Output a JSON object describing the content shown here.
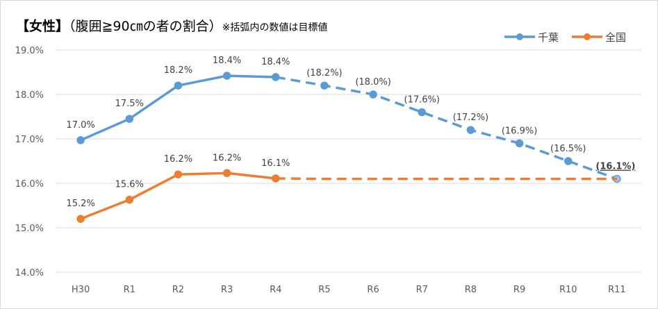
{
  "title": {
    "main": "【女性】",
    "sub": "（腹囲≧90㎝の者の割合）",
    "note": "※括弧内の数値は目標値"
  },
  "chart_data": {
    "type": "line",
    "categories": [
      "H30",
      "R1",
      "R2",
      "R3",
      "R4",
      "R5",
      "R6",
      "R7",
      "R8",
      "R9",
      "R10",
      "R11"
    ],
    "ylim": [
      14.0,
      19.0
    ],
    "yticks": [
      "14.0%",
      "15.0%",
      "16.0%",
      "17.0%",
      "18.0%",
      "19.0%"
    ],
    "ytick_values": [
      14,
      15,
      16,
      17,
      18,
      19
    ],
    "grid": true,
    "legend_position": "top-right",
    "actual_until_index": 4,
    "series": [
      {
        "name": "千葉",
        "color": "#5b9bd5",
        "values": [
          16.97,
          17.45,
          18.2,
          18.42,
          18.39,
          18.2,
          18.0,
          17.6,
          17.2,
          16.9,
          16.5,
          16.1
        ],
        "labels": [
          "17.0%",
          "17.5%",
          "18.2%",
          "18.4%",
          "18.4%",
          "(18.2%)",
          "(18.0%)",
          "(17.6%)",
          "(17.2%)",
          "(16.9%)",
          "(16.5%)",
          "(16.1%)"
        ]
      },
      {
        "name": "全国",
        "color": "#ed7d31",
        "values": [
          15.2,
          15.63,
          16.2,
          16.23,
          16.11,
          16.1,
          16.1,
          16.1,
          16.1,
          16.1,
          16.1,
          16.1
        ],
        "labels": [
          "15.2%",
          "15.6%",
          "16.2%",
          "16.2%",
          "16.1%"
        ]
      }
    ]
  }
}
